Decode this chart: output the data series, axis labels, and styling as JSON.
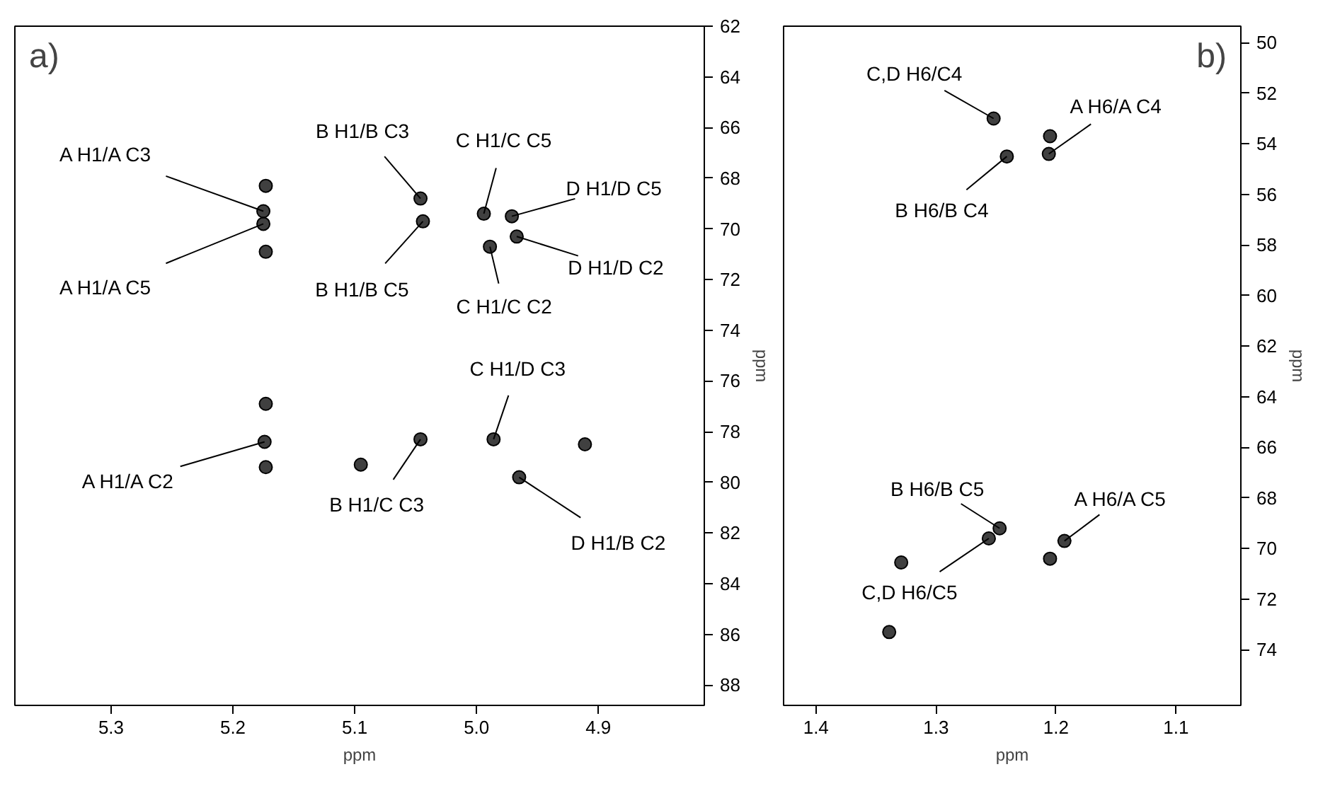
{
  "chart_data": [
    {
      "type": "scatter",
      "title": "a)",
      "xlabel": "ppm",
      "ylabel": "ppm",
      "xlim": [
        5.379,
        4.813
      ],
      "ylim": [
        88.8,
        62
      ],
      "xticks": [
        5.3,
        5.2,
        5.1,
        {
          "value": 5.0,
          "label": "5.0"
        },
        4.9
      ],
      "yticks": [
        62,
        64,
        66,
        68,
        70,
        72,
        74,
        76,
        78,
        80,
        82,
        84,
        86,
        88
      ],
      "grid": false,
      "marker": "circle",
      "series": [
        {
          "color": "#000000",
          "x": [
            5.175,
            5.175,
            5.046,
            5.044,
            4.994,
            4.971,
            4.967,
            4.989,
            4.986,
            5.174,
            5.046,
            4.965
          ],
          "values": [
            69.3,
            69.8,
            68.8,
            69.7,
            69.4,
            69.5,
            70.3,
            70.7,
            78.3,
            78.4,
            78.3,
            79.8
          ]
        },
        {
          "color": "#000000",
          "x": [
            5.173,
            5.173,
            5.173,
            5.173,
            5.095,
            4.911
          ],
          "values": [
            68.3,
            70.9,
            76.9,
            79.4,
            79.3,
            78.5
          ]
        }
      ],
      "annotations": [
        {
          "text": "A H1/A C3",
          "x": 5.175,
          "y": 69.3
        },
        {
          "text": "A H1/A C5",
          "x": 5.175,
          "y": 69.8
        },
        {
          "text": "B H1/B C3",
          "x": 5.046,
          "y": 68.8
        },
        {
          "text": "B H1/B C5",
          "x": 5.044,
          "y": 69.7
        },
        {
          "text": "C H1/C C5",
          "x": 4.994,
          "y": 69.4
        },
        {
          "text": "D H1/D C5",
          "x": 4.971,
          "y": 69.5
        },
        {
          "text": "D H1/D C2",
          "x": 4.967,
          "y": 70.3
        },
        {
          "text": "C H1/C C2",
          "x": 4.989,
          "y": 70.7
        },
        {
          "text": "C H1/D C3",
          "x": 4.986,
          "y": 78.3
        },
        {
          "text": "A H1/A C2",
          "x": 5.174,
          "y": 78.4
        },
        {
          "text": "B H1/C C3",
          "x": 5.046,
          "y": 78.3
        },
        {
          "text": "D H1/B C2",
          "x": 4.965,
          "y": 79.8
        }
      ]
    },
    {
      "type": "scatter",
      "title": "b)",
      "xlabel": "ppm",
      "ylabel": "ppm",
      "xlim": [
        1.427,
        1.046
      ],
      "ylim": [
        76.2,
        49.35
      ],
      "xticks": [
        1.4,
        1.3,
        1.2,
        1.1
      ],
      "yticks": [
        50,
        52,
        54,
        56,
        58,
        60,
        62,
        64,
        66,
        68,
        70,
        72,
        74
      ],
      "grid": false,
      "marker": "circle",
      "series": [
        {
          "color": "#000000",
          "x": [
            1.252,
            1.206,
            1.241,
            1.247,
            1.193,
            1.256
          ],
          "values": [
            53.0,
            54.4,
            54.5,
            69.2,
            69.7,
            69.6
          ]
        },
        {
          "color": "#000000",
          "x": [
            1.205,
            1.329,
            1.339,
            1.205
          ],
          "values": [
            53.7,
            70.55,
            73.3,
            70.4
          ]
        }
      ],
      "annotations": [
        {
          "text": "C,D H6/C4",
          "x": 1.252,
          "y": 53.0
        },
        {
          "text": "A H6/A C4",
          "x": 1.206,
          "y": 54.4
        },
        {
          "text": "B H6/B C4",
          "x": 1.241,
          "y": 54.5
        },
        {
          "text": "B H6/B C5",
          "x": 1.247,
          "y": 69.2
        },
        {
          "text": "A H6/A C5",
          "x": 1.193,
          "y": 69.7
        },
        {
          "text": "C,D H6/C5",
          "x": 1.256,
          "y": 69.6
        }
      ]
    }
  ]
}
